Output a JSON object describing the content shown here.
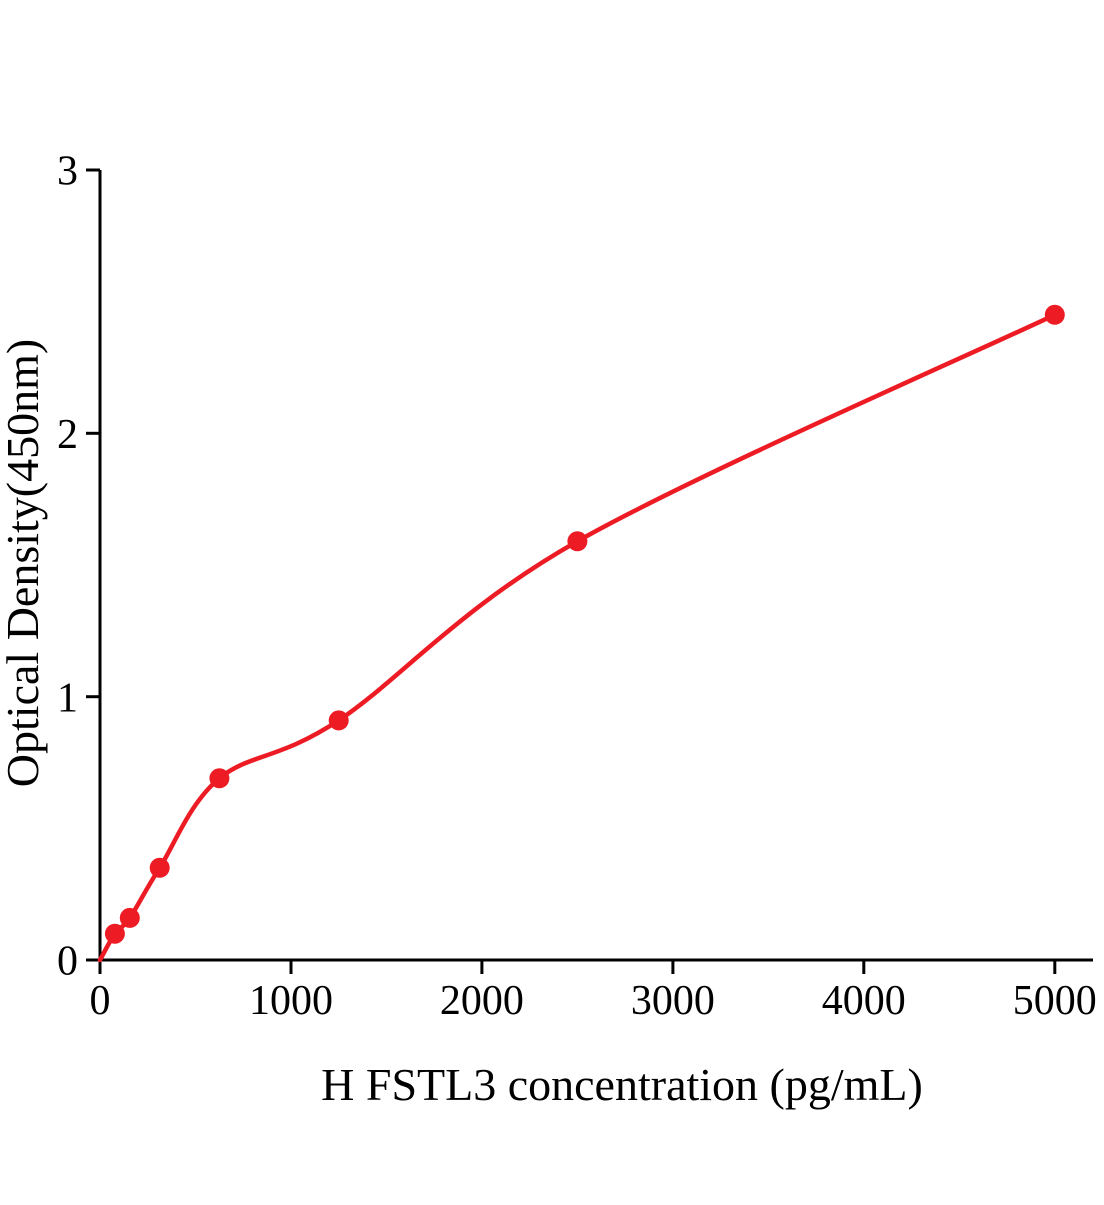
{
  "chart_data": {
    "type": "scatter",
    "title": "",
    "xlabel": "H FSTL3 concentration (pg/mL)",
    "ylabel": "Optical Density(450nm)",
    "x": [
      78.1,
      156.2,
      312.5,
      625,
      1250,
      2500,
      5000
    ],
    "y": [
      0.1,
      0.16,
      0.35,
      0.69,
      0.91,
      1.59,
      2.45
    ],
    "curve_origin": [
      0,
      0
    ],
    "xlim": [
      0,
      5200
    ],
    "ylim": [
      0,
      3
    ],
    "x_ticks": [
      0,
      1000,
      2000,
      3000,
      4000,
      5000
    ],
    "y_ticks": [
      0,
      1,
      2,
      3
    ],
    "x_tick_labels": [
      "0",
      "1000",
      "2000",
      "3000",
      "4000",
      "5000"
    ],
    "y_tick_labels": [
      "0",
      "1",
      "2",
      "3"
    ],
    "marker_color": "#ed1c24",
    "line_color": "#ed1c24",
    "axis_color": "#000000",
    "grid": false,
    "legend": "none"
  }
}
